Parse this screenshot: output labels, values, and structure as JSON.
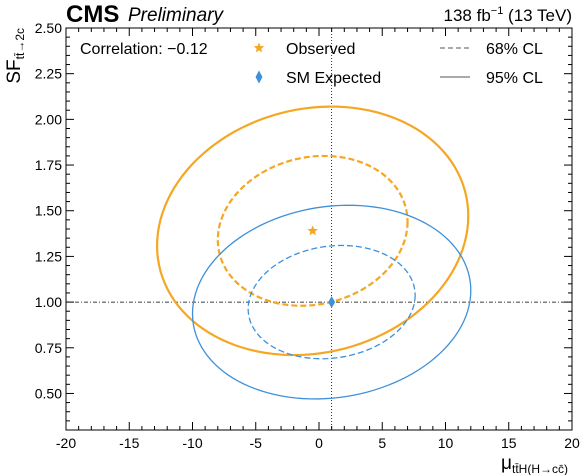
{
  "header": {
    "experiment": "CMS",
    "status": "Preliminary",
    "lumi_value": "138 fb",
    "lumi_exp": "−1",
    "lumi_energy": " (13 TeV)"
  },
  "chart_data": {
    "type": "scatter",
    "xlabel": {
      "main": "μ",
      "sub": "tt̄H(H→cc̄)"
    },
    "ylabel": {
      "main": "SF",
      "sub": "tt̄→2c"
    },
    "xlim": [
      -20,
      20
    ],
    "ylim": [
      0.3,
      2.5
    ],
    "xticks": [
      -20,
      -15,
      -10,
      -5,
      0,
      5,
      10,
      15,
      20
    ],
    "yticks": [
      0.5,
      0.75,
      1.0,
      1.25,
      1.5,
      1.75,
      2.0,
      2.25,
      2.5
    ],
    "ytick_labels": [
      "0.50",
      "0.75",
      "1.00",
      "1.25",
      "1.50",
      "1.75",
      "2.00",
      "2.25",
      "2.50"
    ],
    "reference_lines": {
      "x": 1.0,
      "y": 1.0
    },
    "annotation": "Correlation: −0.12",
    "points": [
      {
        "name": "Observed",
        "marker": "star",
        "x": -0.5,
        "y": 1.39,
        "color": "#f5a623"
      },
      {
        "name": "SM Expected",
        "marker": "diamond",
        "x": 1.0,
        "y": 1.0,
        "color": "#3f90da"
      }
    ],
    "contours": [
      {
        "point": "Observed",
        "cl": "68% CL",
        "style": "dashed",
        "color": "#f5a623",
        "center": [
          -0.5,
          1.39
        ],
        "half_width_x": 7.5,
        "half_height_y": 0.41,
        "correlation": -0.12
      },
      {
        "point": "Observed",
        "cl": "95% CL",
        "style": "solid",
        "color": "#f5a623",
        "center": [
          -0.5,
          1.39
        ],
        "half_width_x": 12.3,
        "half_height_y": 0.68,
        "correlation": -0.12
      },
      {
        "point": "SM Expected",
        "cl": "68% CL",
        "style": "dashed",
        "color": "#3f90da",
        "center": [
          1.0,
          1.0
        ],
        "half_width_x": 6.6,
        "half_height_y": 0.31,
        "correlation": -0.12
      },
      {
        "point": "SM Expected",
        "cl": "95% CL",
        "style": "solid",
        "color": "#3f90da",
        "center": [
          1.0,
          1.0
        ],
        "half_width_x": 11.0,
        "half_height_y": 0.53,
        "correlation": -0.12
      }
    ],
    "legend": [
      {
        "label": "Observed",
        "symbol": "star"
      },
      {
        "label": "SM Expected",
        "symbol": "diamond"
      },
      {
        "label": "68% CL",
        "symbol": "dashed-line"
      },
      {
        "label": "95% CL",
        "symbol": "solid-line"
      }
    ],
    "legend_placement": "top",
    "grid": false
  }
}
